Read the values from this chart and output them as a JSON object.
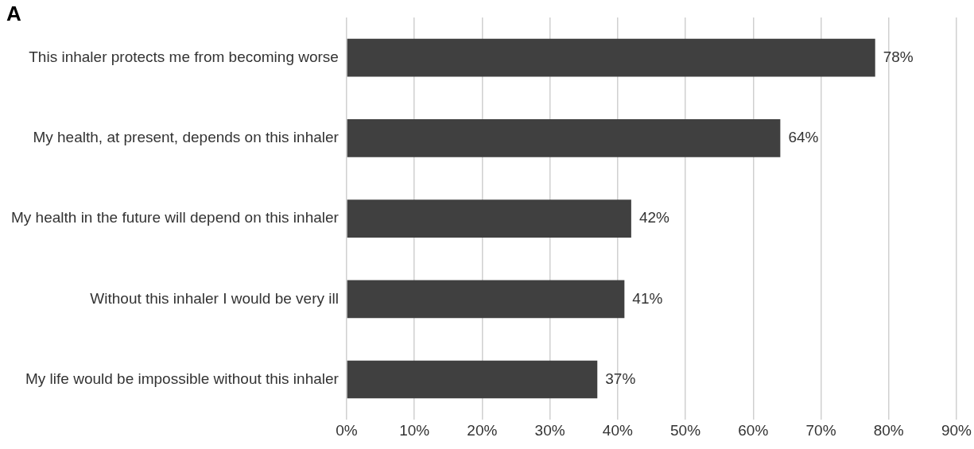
{
  "chart_data": {
    "type": "bar",
    "orientation": "horizontal",
    "title": "A",
    "categories": [
      "This inhaler protects me from becoming worse",
      "My health, at present, depends on this inhaler",
      "My health in the future will depend on this inhaler",
      "Without this inhaler I would be very ill",
      "My life would be impossible without this inhaler"
    ],
    "values": [
      78,
      64,
      42,
      41,
      37
    ],
    "value_labels": [
      "78%",
      "64%",
      "42%",
      "41%",
      "37%"
    ],
    "color": "#404040",
    "xlim": [
      0,
      90
    ],
    "xticks": [
      {
        "value": 0,
        "label": "0%"
      },
      {
        "value": 10,
        "label": "10%"
      },
      {
        "value": 20,
        "label": "20%"
      },
      {
        "value": 30,
        "label": "30%"
      },
      {
        "value": 40,
        "label": "40%"
      },
      {
        "value": 50,
        "label": "50%"
      },
      {
        "value": 60,
        "label": "60%"
      },
      {
        "value": 70,
        "label": "70%"
      },
      {
        "value": 80,
        "label": "80%"
      },
      {
        "value": 90,
        "label": "90%"
      }
    ],
    "grid": "x",
    "legend": false
  }
}
